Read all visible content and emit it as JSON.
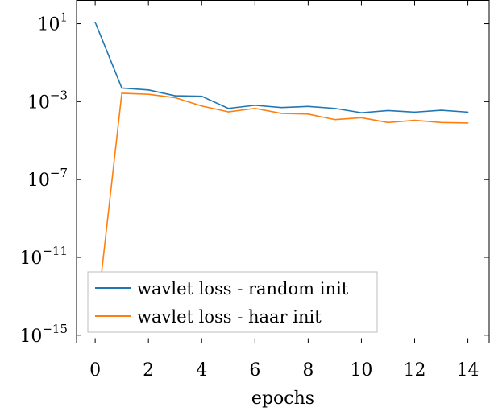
{
  "chart_data": {
    "type": "line",
    "xlabel": "epochs",
    "ylabel": "",
    "title": "",
    "y_scale": "log",
    "xlim": [
      -0.7,
      14.8
    ],
    "ylim_exponent": [
      -15.4,
      2.2
    ],
    "x_ticks": [
      0,
      2,
      4,
      6,
      8,
      10,
      12,
      14
    ],
    "x_tick_labels": [
      "0",
      "2",
      "4",
      "6",
      "8",
      "10",
      "12",
      "14"
    ],
    "y_ticks_exponent": [
      1,
      -3,
      -7,
      -11,
      -15
    ],
    "y_tick_base": "10",
    "y_tick_exponent_labels": [
      "1",
      "−3",
      "−7",
      "−11",
      "−15"
    ],
    "grid": false,
    "legend_position": "bottom-left",
    "series": [
      {
        "name": "wavlet loss - random init",
        "color": "#1f77b4",
        "x": [
          0,
          1,
          2,
          3,
          4,
          5,
          6,
          7,
          8,
          9,
          10,
          11,
          12,
          13,
          14
        ],
        "y": [
          12,
          0.005,
          0.004,
          0.002,
          0.0019,
          0.00045,
          0.00065,
          0.0005,
          0.00057,
          0.00045,
          0.00027,
          0.00035,
          0.00029,
          0.00036,
          0.00029
        ]
      },
      {
        "name": "wavlet loss - haar init",
        "color": "#ff7f0e",
        "x": [
          0,
          1,
          2,
          3,
          4,
          5,
          6,
          7,
          8,
          9,
          10,
          11,
          12,
          13,
          14
        ],
        "y": [
          2e-15,
          0.0027,
          0.0024,
          0.0016,
          0.0006,
          0.0003,
          0.00045,
          0.00025,
          0.00023,
          0.00012,
          0.00015,
          8.5e-05,
          0.00011,
          8.5e-05,
          8e-05
        ]
      }
    ]
  }
}
